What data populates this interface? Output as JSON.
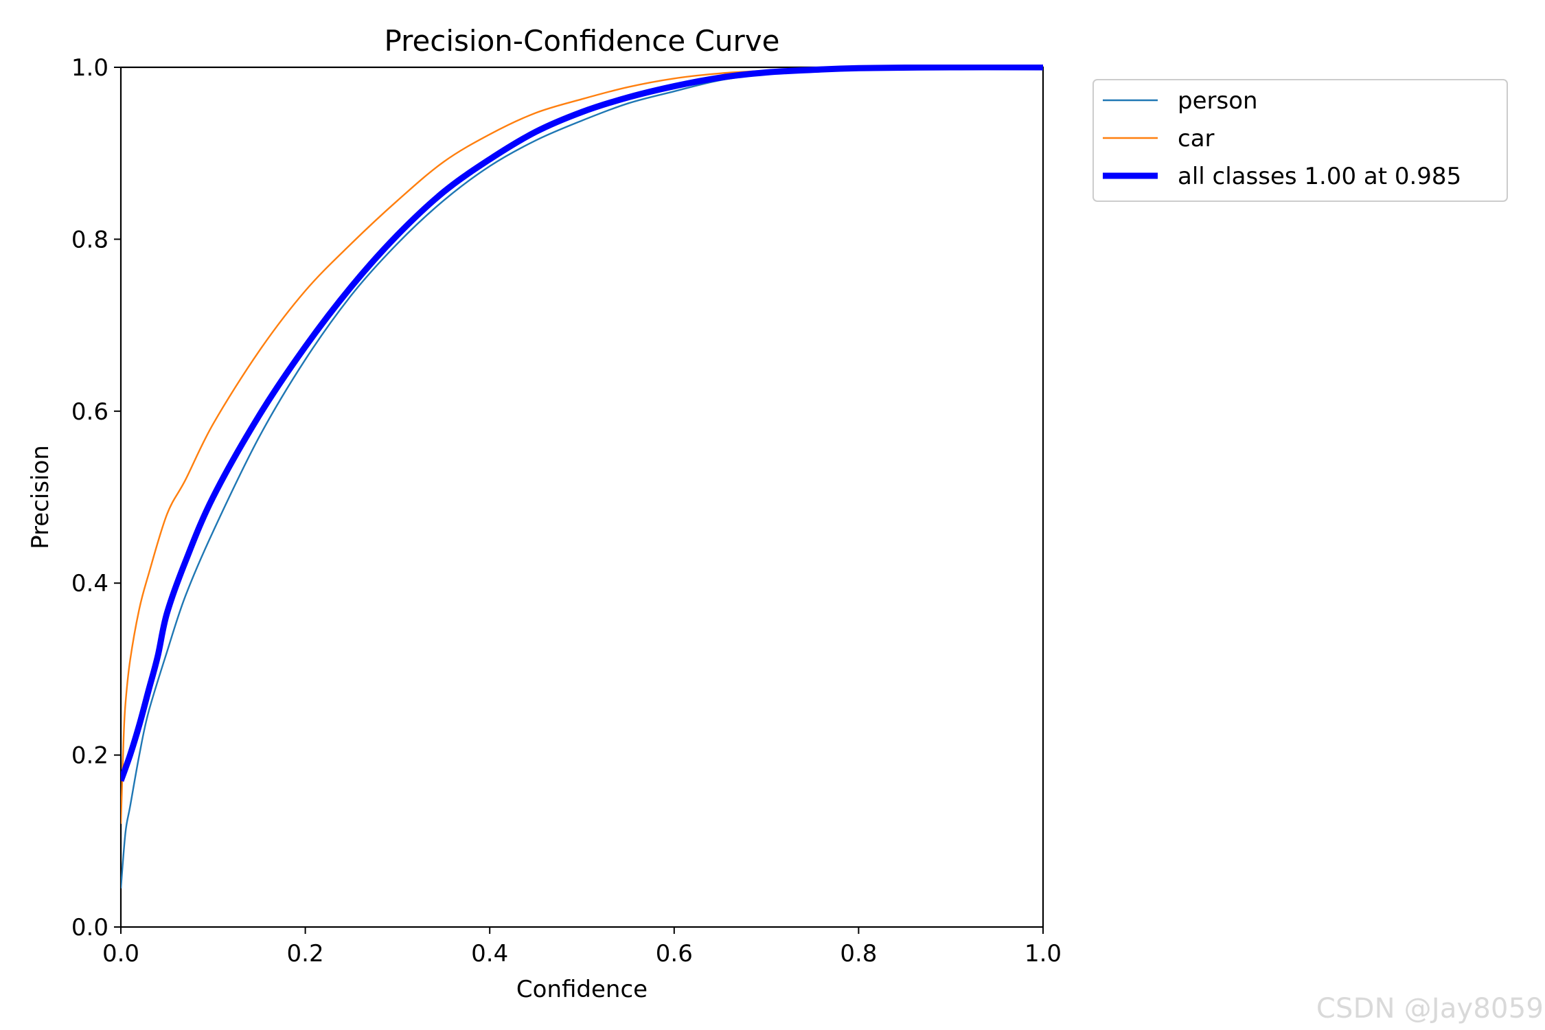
{
  "chart_data": {
    "type": "line",
    "title": "Precision-Confidence Curve",
    "xlabel": "Confidence",
    "ylabel": "Precision",
    "xlim": [
      0.0,
      1.0
    ],
    "ylim": [
      0.0,
      1.0
    ],
    "xticks": [
      "0.0",
      "0.2",
      "0.4",
      "0.6",
      "0.8",
      "1.0"
    ],
    "yticks": [
      "0.0",
      "0.2",
      "0.4",
      "0.6",
      "0.8",
      "1.0"
    ],
    "grid": false,
    "legend_position": "outside-top-right",
    "series": [
      {
        "name": "person",
        "color": "#1f77b4",
        "x": [
          0.0,
          0.005,
          0.01,
          0.02,
          0.03,
          0.05,
          0.07,
          0.1,
          0.15,
          0.2,
          0.25,
          0.3,
          0.35,
          0.4,
          0.45,
          0.5,
          0.55,
          0.6,
          0.65,
          0.7,
          0.75,
          0.8,
          0.9,
          1.0
        ],
        "values": [
          0.045,
          0.11,
          0.14,
          0.2,
          0.25,
          0.32,
          0.385,
          0.46,
          0.57,
          0.66,
          0.735,
          0.795,
          0.845,
          0.885,
          0.915,
          0.938,
          0.958,
          0.972,
          0.985,
          0.992,
          0.995,
          0.998,
          0.999,
          1.0
        ]
      },
      {
        "name": "car",
        "color": "#ff7f0e",
        "x": [
          0.0,
          0.003,
          0.005,
          0.01,
          0.02,
          0.03,
          0.05,
          0.07,
          0.1,
          0.15,
          0.2,
          0.25,
          0.3,
          0.35,
          0.4,
          0.45,
          0.5,
          0.55,
          0.6,
          0.65,
          0.7,
          0.75,
          0.8,
          0.9,
          1.0
        ],
        "values": [
          0.12,
          0.22,
          0.26,
          0.31,
          0.37,
          0.41,
          0.48,
          0.52,
          0.585,
          0.67,
          0.74,
          0.795,
          0.845,
          0.89,
          0.922,
          0.947,
          0.963,
          0.977,
          0.987,
          0.993,
          0.996,
          0.998,
          0.999,
          1.0,
          1.0
        ]
      },
      {
        "name": "all classes 1.00 at 0.985",
        "color": "#0000ff",
        "bold": true,
        "x": [
          0.0,
          0.01,
          0.02,
          0.03,
          0.04,
          0.05,
          0.07,
          0.1,
          0.15,
          0.2,
          0.25,
          0.3,
          0.35,
          0.4,
          0.45,
          0.5,
          0.55,
          0.6,
          0.65,
          0.7,
          0.75,
          0.8,
          0.9,
          1.0
        ],
        "values": [
          0.17,
          0.2,
          0.235,
          0.275,
          0.315,
          0.365,
          0.425,
          0.5,
          0.595,
          0.675,
          0.745,
          0.805,
          0.855,
          0.893,
          0.925,
          0.948,
          0.965,
          0.978,
          0.988,
          0.994,
          0.997,
          0.999,
          1.0,
          1.0
        ]
      }
    ]
  },
  "watermark": "CSDN @Jay8059"
}
